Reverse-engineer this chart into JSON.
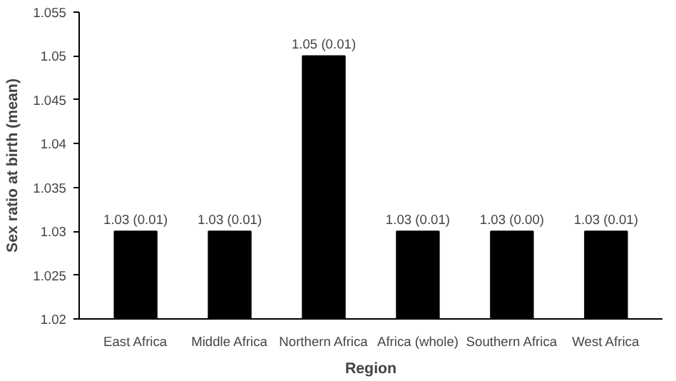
{
  "chart_data": {
    "type": "bar",
    "xlabel": "Region",
    "ylabel": "Sex ratio at birth (mean)",
    "categories": [
      "East Africa",
      "Middle Africa",
      "Northern Africa",
      "Africa (whole)",
      "Southern Africa",
      "West Africa"
    ],
    "values": [
      1.03,
      1.03,
      1.05,
      1.03,
      1.03,
      1.03
    ],
    "value_labels": [
      "1.03 (0.01)",
      "1.03 (0.01)",
      "1.05 (0.01)",
      "1.03 (0.01)",
      "1.03 (0.00)",
      "1.03 (0.01)"
    ],
    "color": "#000000",
    "ylim": [
      1.02,
      1.055
    ],
    "yticks": [
      1.02,
      1.025,
      1.03,
      1.035,
      1.04,
      1.045,
      1.05,
      1.055
    ],
    "grid": false
  }
}
